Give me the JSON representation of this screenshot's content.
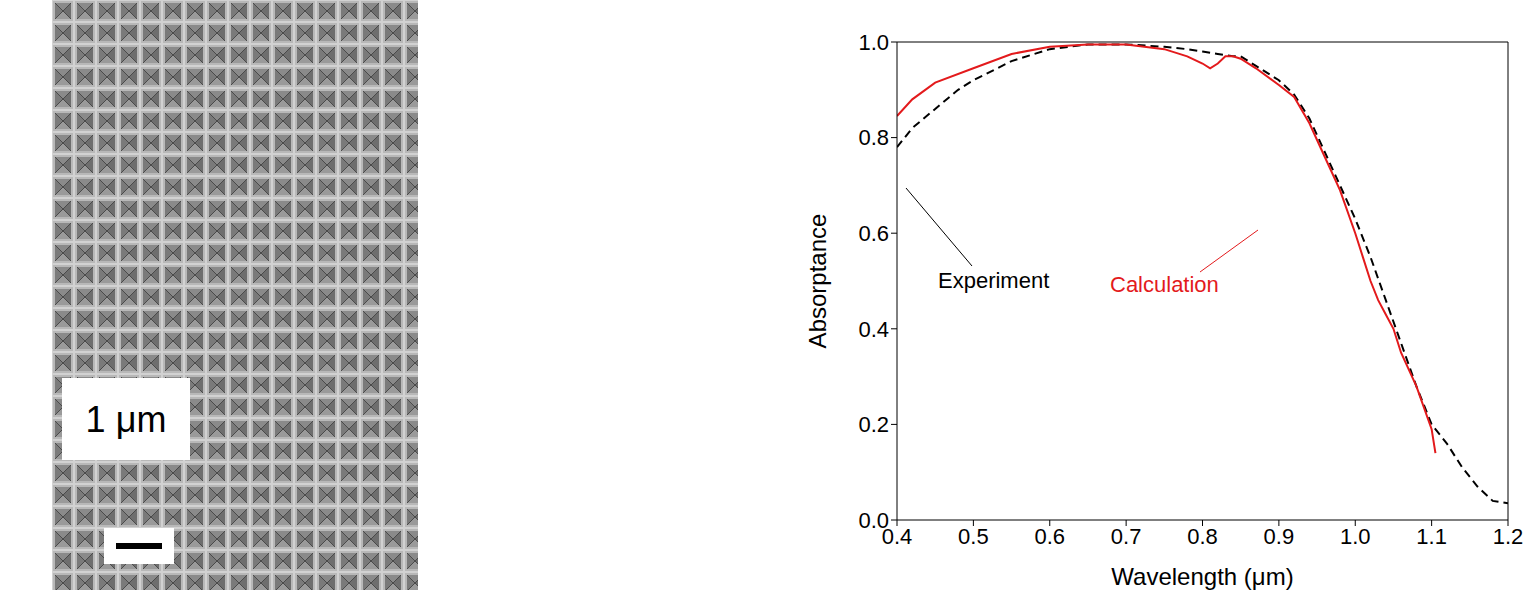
{
  "image": {
    "scale_bar_label": "1 μm"
  },
  "chart_data": {
    "type": "line",
    "x_label": "Wavelength (μm)",
    "y_label": "Absorptance",
    "xlim": [
      0.4,
      1.2
    ],
    "xticks": [
      0.4,
      0.5,
      0.6,
      0.7,
      0.8,
      0.9,
      {
        "value": 1,
        "label": "1.0"
      },
      1.1,
      1.2
    ],
    "ylim": [
      0,
      1
    ],
    "yticks": [
      {
        "value": 0,
        "label": "0.0"
      },
      0.2,
      0.4,
      0.6,
      0.8,
      {
        "value": 1,
        "label": "1.0"
      }
    ],
    "grid": false,
    "series": [
      {
        "name": "Experiment",
        "color": "#000000",
        "line_style": "dashed",
        "x": [
          0.4,
          0.42,
          0.45,
          0.48,
          0.5,
          0.55,
          0.6,
          0.65,
          0.7,
          0.75,
          0.78,
          0.8,
          0.82,
          0.84,
          0.85,
          0.87,
          0.9,
          0.92,
          0.94,
          0.96,
          0.98,
          1.0,
          1.02,
          1.04,
          1.06,
          1.08,
          1.1,
          1.12,
          1.14,
          1.16,
          1.18,
          1.2
        ],
        "values": [
          0.78,
          0.82,
          0.86,
          0.9,
          0.92,
          0.96,
          0.985,
          0.995,
          0.995,
          0.99,
          0.985,
          0.98,
          0.975,
          0.97,
          0.97,
          0.95,
          0.92,
          0.89,
          0.84,
          0.77,
          0.7,
          0.63,
          0.55,
          0.46,
          0.37,
          0.28,
          0.2,
          0.16,
          0.11,
          0.07,
          0.04,
          0.035
        ]
      },
      {
        "name": "Calculation",
        "color": "#e31a1c",
        "line_style": "solid",
        "x": [
          0.4,
          0.42,
          0.45,
          0.5,
          0.55,
          0.6,
          0.65,
          0.7,
          0.75,
          0.78,
          0.8,
          0.81,
          0.82,
          0.83,
          0.84,
          0.85,
          0.87,
          0.9,
          0.92,
          0.94,
          0.96,
          0.98,
          1.0,
          1.01,
          1.02,
          1.03,
          1.04,
          1.05,
          1.06,
          1.08,
          1.1,
          1.105
        ],
        "values": [
          0.845,
          0.88,
          0.915,
          0.945,
          0.975,
          0.99,
          0.995,
          0.995,
          0.985,
          0.97,
          0.955,
          0.945,
          0.955,
          0.97,
          0.97,
          0.965,
          0.945,
          0.91,
          0.885,
          0.83,
          0.76,
          0.69,
          0.6,
          0.55,
          0.5,
          0.46,
          0.43,
          0.4,
          0.35,
          0.28,
          0.19,
          0.14
        ]
      }
    ]
  }
}
